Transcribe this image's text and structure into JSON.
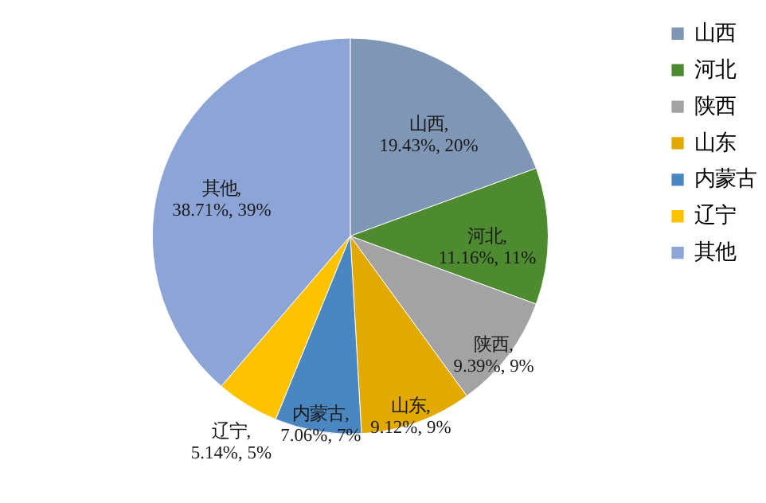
{
  "chart_data": {
    "type": "pie",
    "categories": [
      "山西",
      "河北",
      "陕西",
      "山东",
      "内蒙古",
      "辽宁",
      "其他"
    ],
    "values": [
      19.43,
      11.16,
      9.39,
      9.12,
      7.06,
      5.14,
      38.71
    ],
    "colors": [
      "#7f97b5",
      "#4e8a2f",
      "#a3a3a3",
      "#e2a900",
      "#4a86c0",
      "#fdc200",
      "#8da4d6"
    ],
    "value_labels": [
      "山西, 19.43%, 20%",
      "河北, 11.16%, 11%",
      "陕西, 9.39%, 9%",
      "山东, 9.12%, 9%",
      "内蒙古, 7.06%, 7%",
      "辽宁, 5.14%, 5%",
      "其他, 38.71%, 39%"
    ],
    "legend": "right"
  }
}
